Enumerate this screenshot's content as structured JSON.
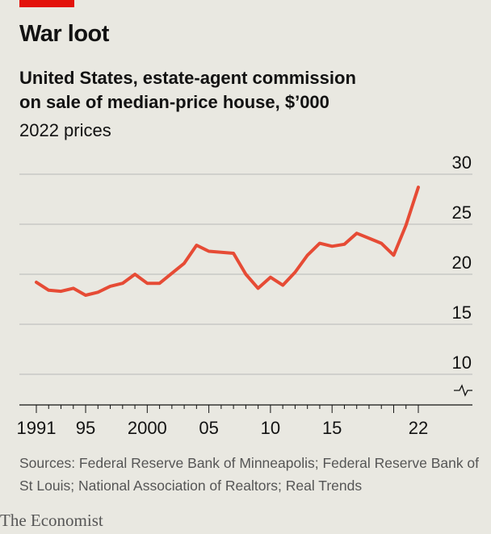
{
  "title": "War loot",
  "subtitle_line1": "United States, estate-agent commission",
  "subtitle_line2": "on sale of median-price house, $’000",
  "units": "2022 prices",
  "source": "Sources: Federal Reserve Bank of Minneapolis; Federal Reserve Bank of St Louis; National Association of Realtors; Real Trends",
  "brand": "The Economist",
  "colors": {
    "accent": "#e3120b",
    "line": "#e64b35",
    "background": "#e9e8e1",
    "grid": "#b7b7b7"
  },
  "chart_data": {
    "type": "line",
    "title": "",
    "xlabel": "",
    "ylabel": "",
    "ylim": [
      10,
      30
    ],
    "xlim": [
      1991,
      2022
    ],
    "y_axis_broken_below": 10,
    "y_ticks": [
      10,
      15,
      20,
      25,
      30
    ],
    "y_tick_labels": [
      "10",
      "15",
      "20",
      "25",
      "30"
    ],
    "x_ticks": [
      1991,
      1995,
      2000,
      2005,
      2010,
      2015,
      2020,
      2022
    ],
    "x_tick_labels": [
      "1991",
      "95",
      "2000",
      "05",
      "10",
      "15",
      "",
      "22"
    ],
    "grid": true,
    "series": [
      {
        "x": [
          1991,
          1992,
          1993,
          1994,
          1995,
          1996,
          1997,
          1998,
          1999,
          2000,
          2001,
          2002,
          2003,
          2004,
          2005,
          2006,
          2007,
          2008,
          2009,
          2010,
          2011,
          2012,
          2013,
          2014,
          2015,
          2016,
          2017,
          2018,
          2019,
          2020,
          2021,
          2022
        ],
        "values": [
          19.2,
          18.4,
          18.3,
          18.6,
          17.9,
          18.2,
          18.8,
          19.1,
          20.0,
          19.1,
          19.1,
          20.1,
          21.1,
          22.9,
          22.3,
          22.2,
          22.1,
          20.0,
          18.6,
          19.7,
          18.9,
          20.2,
          21.9,
          23.1,
          22.8,
          23.0,
          24.1,
          23.6,
          23.1,
          21.9,
          24.9,
          28.7
        ]
      }
    ]
  }
}
